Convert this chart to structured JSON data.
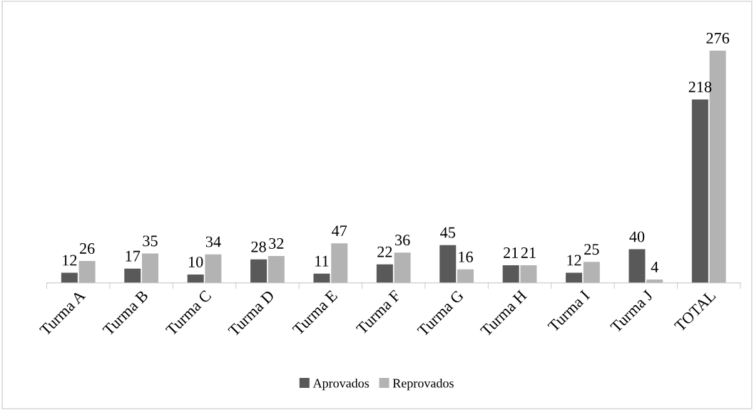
{
  "chart_data": {
    "type": "bar",
    "categories": [
      "Turma A",
      "Turma B",
      "Turma C",
      "Turma D",
      "Turma E",
      "Turma F",
      "Turma G",
      "Turma H",
      "Turma I",
      "Turma J",
      "TOTAL"
    ],
    "series": [
      {
        "name": "Aprovados",
        "color": "#595959",
        "values": [
          12,
          17,
          10,
          28,
          11,
          22,
          45,
          21,
          12,
          40,
          218
        ]
      },
      {
        "name": "Reprovados",
        "color": "#b3b3b3",
        "values": [
          26,
          35,
          34,
          32,
          47,
          36,
          16,
          21,
          25,
          4,
          276
        ]
      }
    ],
    "data_labels": true,
    "legend": "bottom",
    "grid": false
  }
}
